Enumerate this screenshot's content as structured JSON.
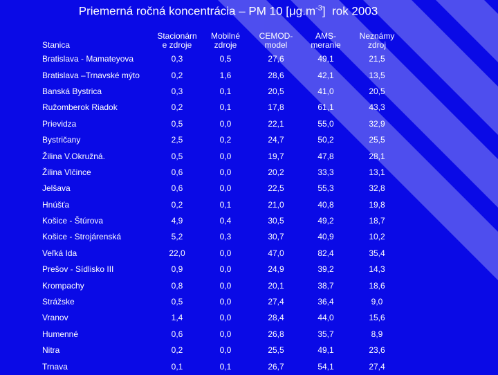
{
  "title": {
    "prefix": "Priemerná ročná koncentrácia – PM 10 [",
    "mu": "μ",
    "unit_mid": "g.m",
    "sup": "-3",
    "suffix": "]  rok 2003"
  },
  "colors": {
    "background": "#0a0ae6",
    "stripe": "#5a5af0",
    "text": "#ffffff"
  },
  "headers": [
    "Stanica",
    "Stacionárne zdroje",
    "Mobilné zdroje",
    "CEMOD-model",
    "AMS-meranie",
    "Neznámy zdroj"
  ],
  "header_lines": [
    [
      "Stanica"
    ],
    [
      "Stacionárn",
      "e zdroje"
    ],
    [
      "Mobilné",
      "zdroje"
    ],
    [
      "CEMOD-",
      "model"
    ],
    [
      "AMS-",
      "meranie"
    ],
    [
      "Neznámy",
      "zdroj"
    ]
  ],
  "rows": [
    [
      "Bratislava - Mamateyova",
      "0,3",
      "0,5",
      "27,6",
      "49,1",
      "21,5"
    ],
    [
      "Bratislava –Trnavské mýto",
      "0,2",
      "1,6",
      "28,6",
      "42,1",
      "13,5"
    ],
    [
      "Banská  Bystrica",
      "0,3",
      "0,1",
      "20,5",
      "41,0",
      "20,5"
    ],
    [
      "Ružomberok Riadok",
      "0,2",
      "0,1",
      "17,8",
      "61,1",
      "43,3"
    ],
    [
      "Prievidza",
      "0,5",
      "0,0",
      "22,1",
      "55,0",
      "32,9"
    ],
    [
      "Bystričany",
      "2,5",
      "0,2",
      "24,7",
      "50,2",
      "25,5"
    ],
    [
      "Žilina V.Okružná.",
      "0,5",
      "0,0",
      "19,7",
      "47,8",
      "28,1"
    ],
    [
      "Žilina Vlčince",
      "0,6",
      "0,0",
      "20,2",
      "33,3",
      "13,1"
    ],
    [
      "Jelšava",
      "0,6",
      "0,0",
      "22,5",
      "55,3",
      "32,8"
    ],
    [
      "Hnúšťa",
      "0,2",
      "0,1",
      "21,0",
      "40,8",
      "19,8"
    ],
    [
      "Košice - Štúrova",
      "4,9",
      "0,4",
      "30,5",
      "49,2",
      "18,7"
    ],
    [
      "Košice - Strojárenská",
      "5,2",
      "0,3",
      "30,7",
      "40,9",
      "10,2"
    ],
    [
      "Veľká  Ida",
      "22,0",
      "0,0",
      "47,0",
      "82,4",
      "35,4"
    ],
    [
      "Prešov - Sídlisko III",
      "0,9",
      "0,0",
      "24,9",
      "39,2",
      "14,3"
    ],
    [
      "Krompachy",
      "0,8",
      "0,0",
      "20,1",
      "38,7",
      "18,6"
    ],
    [
      "Strážske",
      "0,5",
      "0,0",
      "27,4",
      "36,4",
      "9,0"
    ],
    [
      "Vranov",
      "1,4",
      "0,0",
      "28,4",
      "44,0",
      "15,6"
    ],
    [
      "Humenné",
      "0,6",
      "0,0",
      "26,8",
      "35,7",
      "8,9"
    ],
    [
      "Nitra",
      "0,2",
      "0,0",
      "25,5",
      "49,1",
      "23,6"
    ],
    [
      "Trnava",
      "0,1",
      "0,1",
      "26,7",
      "54,1",
      "27,4"
    ]
  ]
}
